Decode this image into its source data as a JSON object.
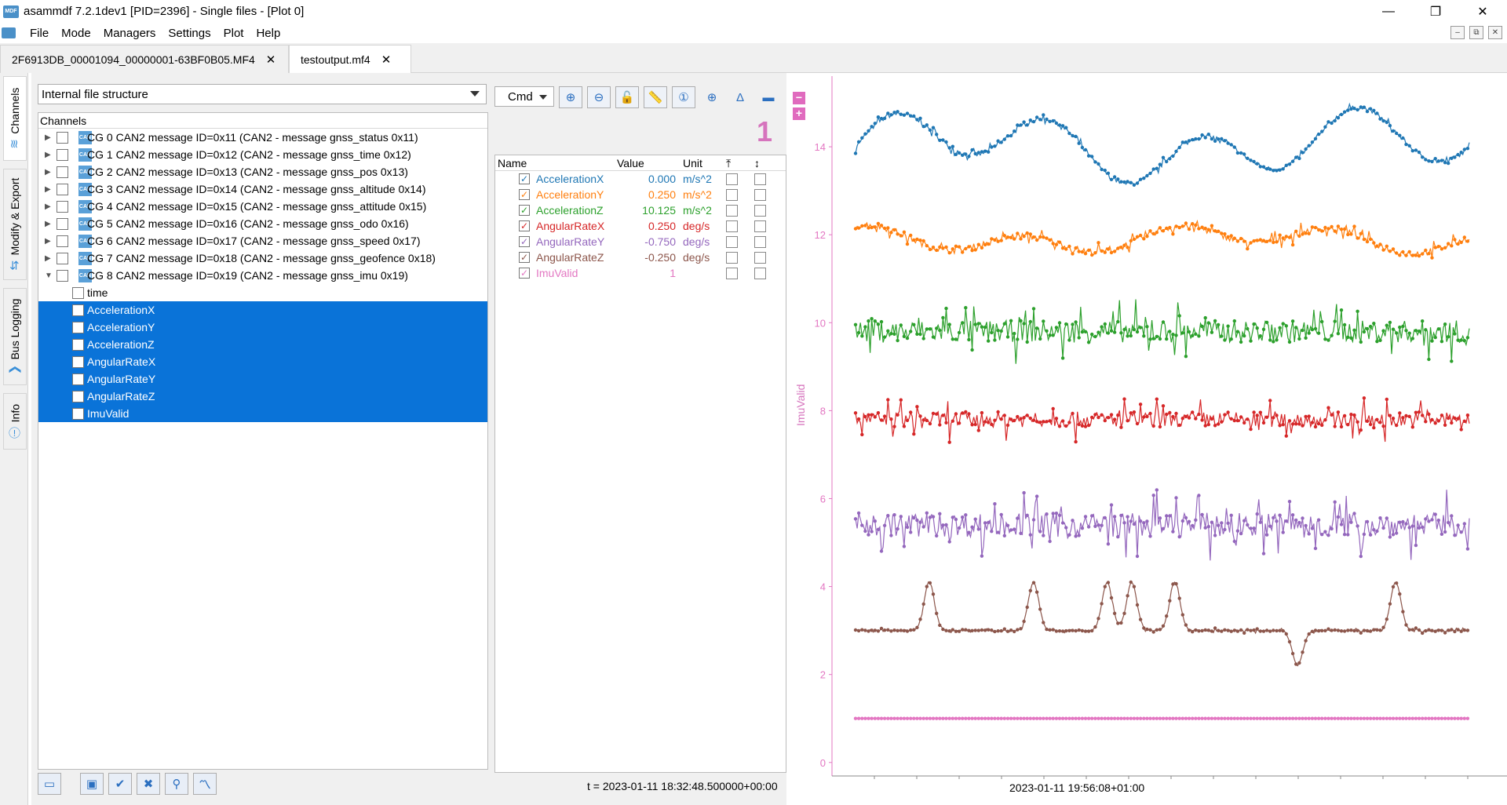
{
  "window": {
    "title": "asammdf 7.2.1dev1 [PID=2396] - Single files - [Plot 0]",
    "minimize_glyph": "—",
    "maximize_glyph": "❐",
    "close_glyph": "✕"
  },
  "menu": {
    "items": [
      "File",
      "Mode",
      "Managers",
      "Settings",
      "Plot",
      "Help"
    ],
    "mdi_glyphs": [
      "–",
      "⧉",
      "✕"
    ]
  },
  "file_tabs": [
    {
      "label": "2F6913DB_00001094_00000001-63BF0B05.MF4",
      "close": "✕"
    },
    {
      "label": "testoutput.mf4",
      "close": "✕"
    }
  ],
  "side_tabs": {
    "channels": "Channels",
    "modify_export": "Modify & Export",
    "bus_logging": "Bus Logging",
    "info": "Info"
  },
  "left": {
    "structure_mode": "Internal file structure",
    "tree_header": "Channels",
    "groups": [
      "CG 0 CAN2 message ID=0x11 (CAN2 - message gnss_status 0x11)",
      "CG 1 CAN2 message ID=0x12 (CAN2 - message gnss_time 0x12)",
      "CG 2 CAN2 message ID=0x13 (CAN2 - message gnss_pos 0x13)",
      "CG 3 CAN2 message ID=0x14 (CAN2 - message gnss_altitude 0x14)",
      "CG 4 CAN2 message ID=0x15 (CAN2 - message gnss_attitude 0x15)",
      "CG 5 CAN2 message ID=0x16 (CAN2 - message gnss_odo 0x16)",
      "CG 6 CAN2 message ID=0x17 (CAN2 - message gnss_speed 0x17)",
      "CG 7 CAN2 message ID=0x18 (CAN2 - message gnss_geofence 0x18)",
      "CG 8 CAN2 message ID=0x19 (CAN2 - message gnss_imu 0x19)"
    ],
    "children": [
      "time",
      "AccelerationX",
      "AccelerationY",
      "AccelerationZ",
      "AngularRateX",
      "AngularRateY",
      "AngularRateZ",
      "ImuValid"
    ],
    "can_icon_text": "CAN"
  },
  "toolbar": {
    "cmd_label": "Cmd",
    "plot_number": "1"
  },
  "channel_table": {
    "headers": {
      "name": "Name",
      "value": "Value",
      "unit": "Unit",
      "col4": "⤒",
      "col5": "↕"
    },
    "rows": [
      {
        "name": "AccelerationX",
        "value": "0.000",
        "unit": "m/s^2",
        "color": "#1f77b4"
      },
      {
        "name": "AccelerationY",
        "value": "0.250",
        "unit": "m/s^2",
        "color": "#ff7f0e"
      },
      {
        "name": "AccelerationZ",
        "value": "10.125",
        "unit": "m/s^2",
        "color": "#2ca02c"
      },
      {
        "name": "AngularRateX",
        "value": "0.250",
        "unit": "deg/s",
        "color": "#d62728"
      },
      {
        "name": "AngularRateY",
        "value": "-0.750",
        "unit": "deg/s",
        "color": "#9467bd"
      },
      {
        "name": "AngularRateZ",
        "value": "-0.250",
        "unit": "deg/s",
        "color": "#8c564b"
      },
      {
        "name": "ImuValid",
        "value": "1",
        "unit": "",
        "color": "#e377c2"
      }
    ],
    "timestamp": "t = 2023-01-11 18:32:48.500000+00:00"
  },
  "plot": {
    "y_axis_label": "ImuValid",
    "x_axis_label": "2023-01-11 19:56:08+01:00",
    "y_ticks": [
      "0",
      "2",
      "4",
      "6",
      "8",
      "10",
      "12",
      "14"
    ],
    "y_range": [
      -0.2,
      15.5
    ],
    "axis_color": "#e377c2",
    "series_levels": [
      {
        "name": "AccelerationX",
        "base": 14.0,
        "amp": 0.9,
        "noise": 0.1,
        "color": "#1f77b4"
      },
      {
        "name": "AccelerationY",
        "base": 11.9,
        "amp": 0.35,
        "noise": 0.15,
        "color": "#ff7f0e"
      },
      {
        "name": "AccelerationZ",
        "base": 9.8,
        "amp": 0.0,
        "noise": 0.5,
        "color": "#2ca02c"
      },
      {
        "name": "AngularRateX",
        "base": 7.8,
        "amp": 0.0,
        "noise": 0.35,
        "color": "#d62728"
      },
      {
        "name": "AngularRateY",
        "base": 5.4,
        "amp": 0.0,
        "noise": 0.55,
        "color": "#9467bd"
      },
      {
        "name": "AngularRateZ",
        "base": 3.0,
        "amp": 0.0,
        "noise": 0.04,
        "color": "#8c564b"
      },
      {
        "name": "ImuValid",
        "base": 1.0,
        "amp": 0.0,
        "noise": 0.0,
        "color": "#e377c2"
      }
    ]
  }
}
